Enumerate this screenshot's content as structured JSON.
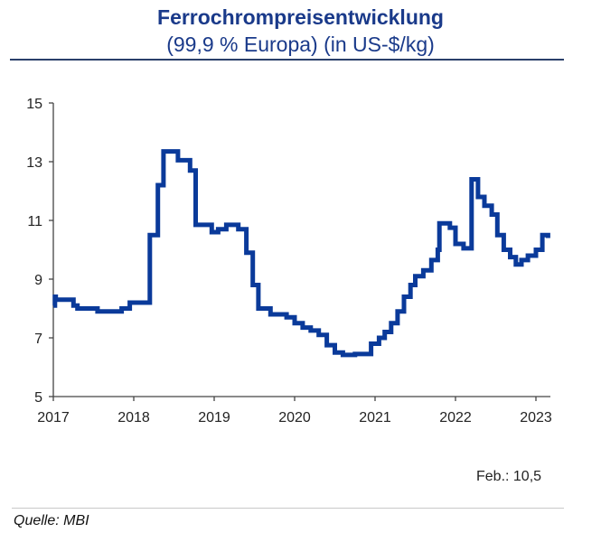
{
  "header": {
    "title": "Ferrochrompreisentwicklung",
    "subtitle": "(99,9 % Europa) (in US-$/kg)"
  },
  "annotation": "Feb.: 10,5",
  "source": "Quelle: MBI",
  "colors": {
    "line": "#0a3a9a",
    "title": "#1a3a8a",
    "axis": "#444444"
  },
  "chart_data": {
    "type": "line",
    "title": "Ferrochrompreisentwicklung",
    "subtitle": "(99,9 % Europa) (in US-$/kg)",
    "xlabel": "",
    "ylabel": "US-$/kg",
    "xlim": [
      2017,
      2023.17
    ],
    "ylim": [
      5,
      15
    ],
    "yticks": [
      5,
      7,
      9,
      11,
      13,
      15
    ],
    "xticks": [
      "2017",
      "2018",
      "2019",
      "2020",
      "2021",
      "2022",
      "2023"
    ],
    "grid": false,
    "legend": null,
    "step": true,
    "series": [
      {
        "name": "Ferrochrom 99,9 % Europa",
        "x": [
          2017.0,
          2017.02,
          2017.03,
          2017.25,
          2017.3,
          2017.55,
          2017.85,
          2017.95,
          2018.2,
          2018.3,
          2018.37,
          2018.55,
          2018.7,
          2018.77,
          2018.97,
          2019.05,
          2019.15,
          2019.3,
          2019.4,
          2019.48,
          2019.55,
          2019.7,
          2019.9,
          2020.0,
          2020.1,
          2020.2,
          2020.3,
          2020.4,
          2020.5,
          2020.6,
          2020.75,
          2020.95,
          2021.05,
          2021.12,
          2021.2,
          2021.28,
          2021.36,
          2021.44,
          2021.5,
          2021.6,
          2021.7,
          2021.78,
          2021.8,
          2021.93,
          2022.0,
          2022.1,
          2022.2,
          2022.28,
          2022.36,
          2022.45,
          2022.52,
          2022.6,
          2022.68,
          2022.75,
          2022.82,
          2022.9,
          2023.0,
          2023.08,
          2023.15
        ],
        "values": [
          8.1,
          8.4,
          8.3,
          8.1,
          8.0,
          7.9,
          8.0,
          8.2,
          10.5,
          12.2,
          13.35,
          13.05,
          12.7,
          10.85,
          10.6,
          10.7,
          10.85,
          10.7,
          9.9,
          8.8,
          8.0,
          7.8,
          7.7,
          7.5,
          7.35,
          7.25,
          7.1,
          6.75,
          6.5,
          6.42,
          6.45,
          6.8,
          7.0,
          7.2,
          7.5,
          7.9,
          8.4,
          8.8,
          9.1,
          9.3,
          9.65,
          10.0,
          10.9,
          10.75,
          10.2,
          10.05,
          12.4,
          11.8,
          11.5,
          11.2,
          10.5,
          10.0,
          9.75,
          9.5,
          9.65,
          9.8,
          10.0,
          10.5,
          10.4
        ]
      }
    ]
  }
}
